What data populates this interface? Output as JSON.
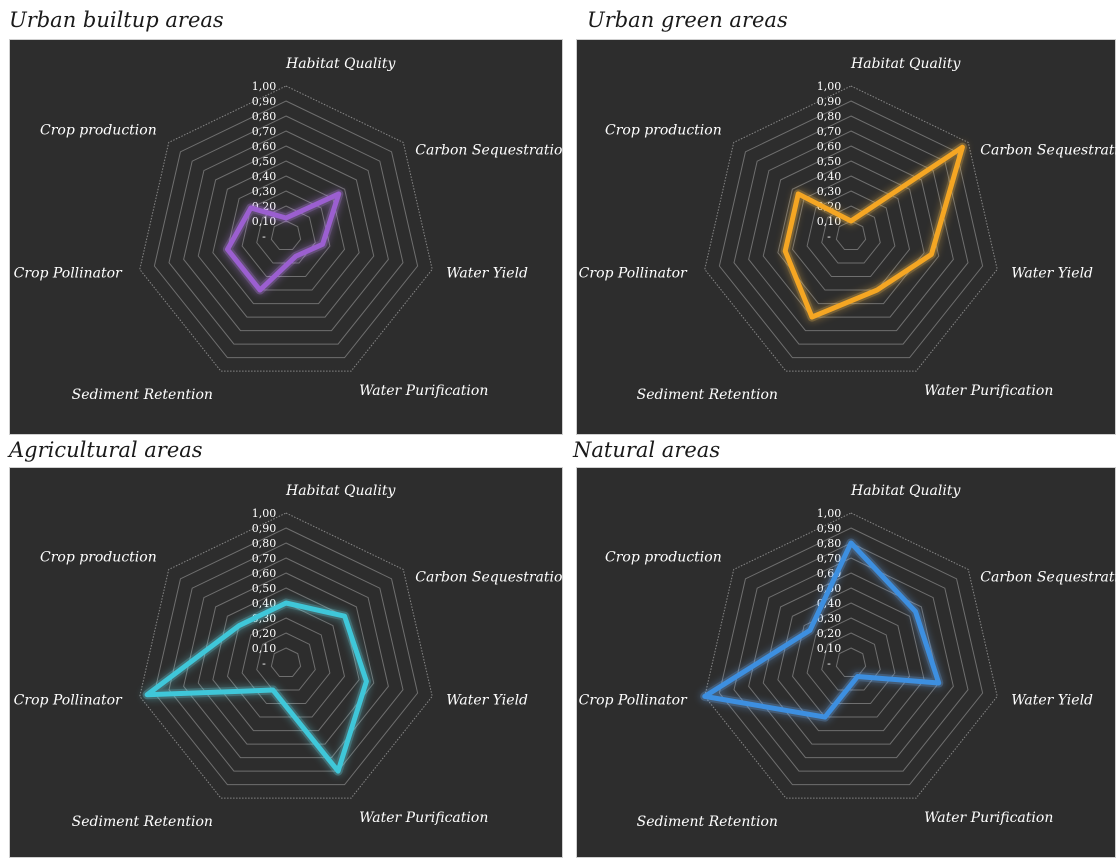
{
  "chart_data": [
    {
      "type": "radar",
      "title": "Urban builtup areas",
      "axes": [
        "Habitat Quality",
        "Carbon Sequestration",
        "Water Yield",
        "Water Purification",
        "Sediment Retention",
        "Crop Pollinator",
        "Crop production"
      ],
      "ticks": [
        "-",
        "0,10",
        "0,20",
        "0,30",
        "0,40",
        "0,50",
        "0,60",
        "0,70",
        "0,80",
        "0,90",
        "1,00"
      ],
      "range": [
        0,
        1
      ],
      "values": [
        0.12,
        0.45,
        0.25,
        0.15,
        0.4,
        0.4,
        0.3
      ],
      "color": "#9b5fd0",
      "glow": "#c48cff"
    },
    {
      "type": "radar",
      "title": "Urban green areas",
      "axes": [
        "Habitat Quality",
        "Carbon Sequestration",
        "Water Yield",
        "Water Purification",
        "Sediment Retention",
        "Crop Pollinator",
        "Crop production"
      ],
      "ticks": [
        "-",
        "0,10",
        "0,20",
        "0,30",
        "0,40",
        "0,50",
        "0,60",
        "0,70",
        "0,80",
        "0,90",
        "1,00"
      ],
      "range": [
        0,
        1
      ],
      "values": [
        0.1,
        0.95,
        0.55,
        0.4,
        0.6,
        0.45,
        0.45
      ],
      "color": "#f5a623",
      "glow": "#ffc24d"
    },
    {
      "type": "radar",
      "title": "Agricultural areas",
      "axes": [
        "Habitat Quality",
        "Carbon Sequestration",
        "Water Yield",
        "Water Purification",
        "Sediment Retention",
        "Crop Pollinator",
        "Crop production"
      ],
      "ticks": [
        "-",
        "0,10",
        "0,20",
        "0,30",
        "0,40",
        "0,50",
        "0,60",
        "0,70",
        "0,80",
        "0,90",
        "1,00"
      ],
      "range": [
        0,
        1
      ],
      "values": [
        0.4,
        0.5,
        0.55,
        0.8,
        0.2,
        0.95,
        0.4
      ],
      "color": "#3fc7d9",
      "glow": "#6ee6f5"
    },
    {
      "type": "radar",
      "title": "Natural areas",
      "axes": [
        "Habitat Quality",
        "Carbon Sequestration",
        "Water Yield",
        "Water Purification",
        "Sediment Retention",
        "Crop Pollinator",
        "Crop production"
      ],
      "ticks": [
        "-",
        "0,10",
        "0,20",
        "0,30",
        "0,40",
        "0,50",
        "0,60",
        "0,70",
        "0,80",
        "0,90",
        "1,00"
      ],
      "range": [
        0,
        1
      ],
      "values": [
        0.8,
        0.55,
        0.6,
        0.1,
        0.4,
        1.0,
        0.35
      ],
      "color": "#3d8fe0",
      "glow": "#6fb3ff"
    }
  ]
}
